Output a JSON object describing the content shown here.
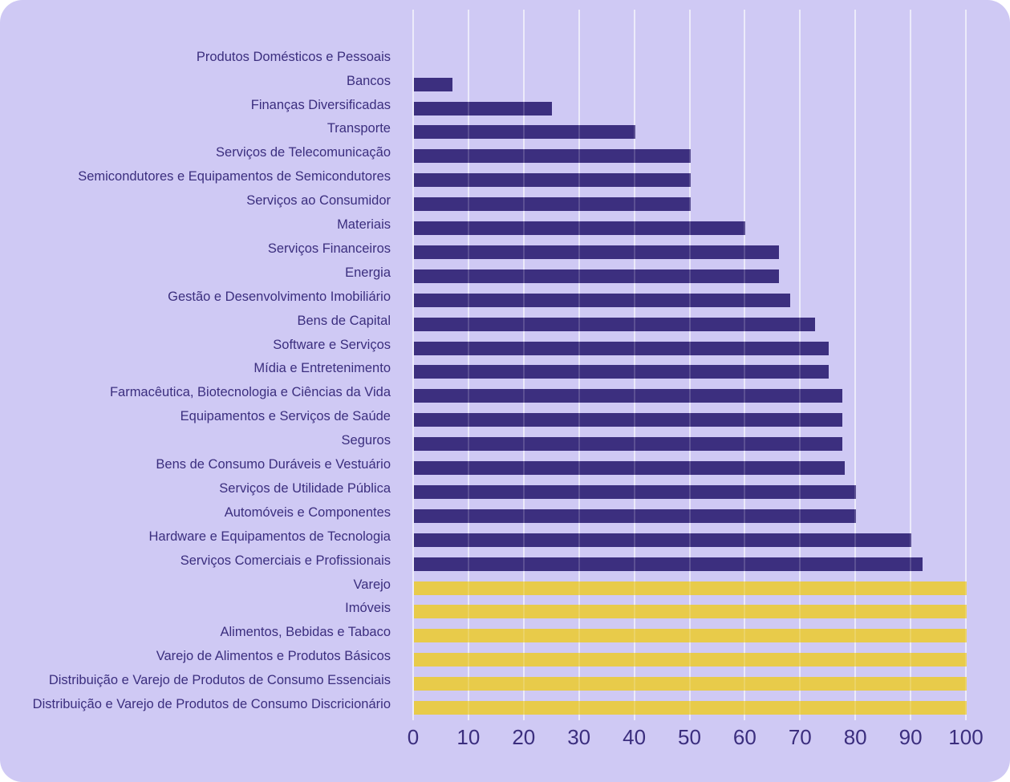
{
  "chart_data": {
    "type": "bar",
    "orientation": "horizontal",
    "title": "",
    "xlabel": "",
    "ylabel": "",
    "xlim": [
      0,
      100
    ],
    "x_ticks": [
      "0",
      "10",
      "20",
      "30",
      "40",
      "50",
      "60",
      "70",
      "80",
      "90",
      "100"
    ],
    "grid": true,
    "legend_position": "none",
    "categories": [
      "Produtos Domésticos e Pessoais",
      "Bancos",
      "Finanças Diversificadas",
      "Transporte",
      "Serviços de Telecomunicação",
      "Semicondutores e Equipamentos de Semicondutores",
      "Serviços ao Consumidor",
      "Materiais",
      "Serviços Financeiros",
      "Energia",
      "Gestão e Desenvolvimento Imobiliário",
      "Bens de Capital",
      "Software e Serviços",
      "Mídia e Entretenimento",
      "Farmacêutica, Biotecnologia e Ciências da Vida",
      "Equipamentos e Serviços de Saúde",
      "Seguros",
      "Bens de Consumo Duráveis e Vestuário",
      "Serviços de Utilidade Pública",
      "Automóveis e Componentes",
      "Hardware e Equipamentos de Tecnologia",
      "Serviços Comerciais e Profissionais",
      "Varejo",
      "Imóveis",
      "Alimentos, Bebidas e Tabaco",
      "Varejo de Alimentos e Produtos Básicos",
      "Distribuição e Varejo de Produtos de Consumo Essenciais",
      "Distribuição e Varejo de Produtos de Consumo Discricionário"
    ],
    "values": [
      0,
      7,
      25,
      40,
      50,
      50,
      50,
      60,
      66,
      66,
      68,
      72.5,
      75,
      75,
      77.5,
      77.5,
      77.5,
      78,
      80,
      80,
      90,
      92,
      100,
      100,
      100,
      100,
      100,
      100
    ],
    "bar_groups": [
      "purple",
      "purple",
      "purple",
      "purple",
      "purple",
      "purple",
      "purple",
      "purple",
      "purple",
      "purple",
      "purple",
      "purple",
      "purple",
      "purple",
      "purple",
      "purple",
      "purple",
      "purple",
      "purple",
      "purple",
      "purple",
      "purple",
      "yellow",
      "yellow",
      "yellow",
      "yellow",
      "yellow",
      "yellow"
    ]
  },
  "colors": {
    "background": "#cfc9f4",
    "bar_purple": "#3c2f7f",
    "bar_yellow": "#e8cb4a",
    "text": "#3b2e7e",
    "gridline": "#ffffff"
  }
}
